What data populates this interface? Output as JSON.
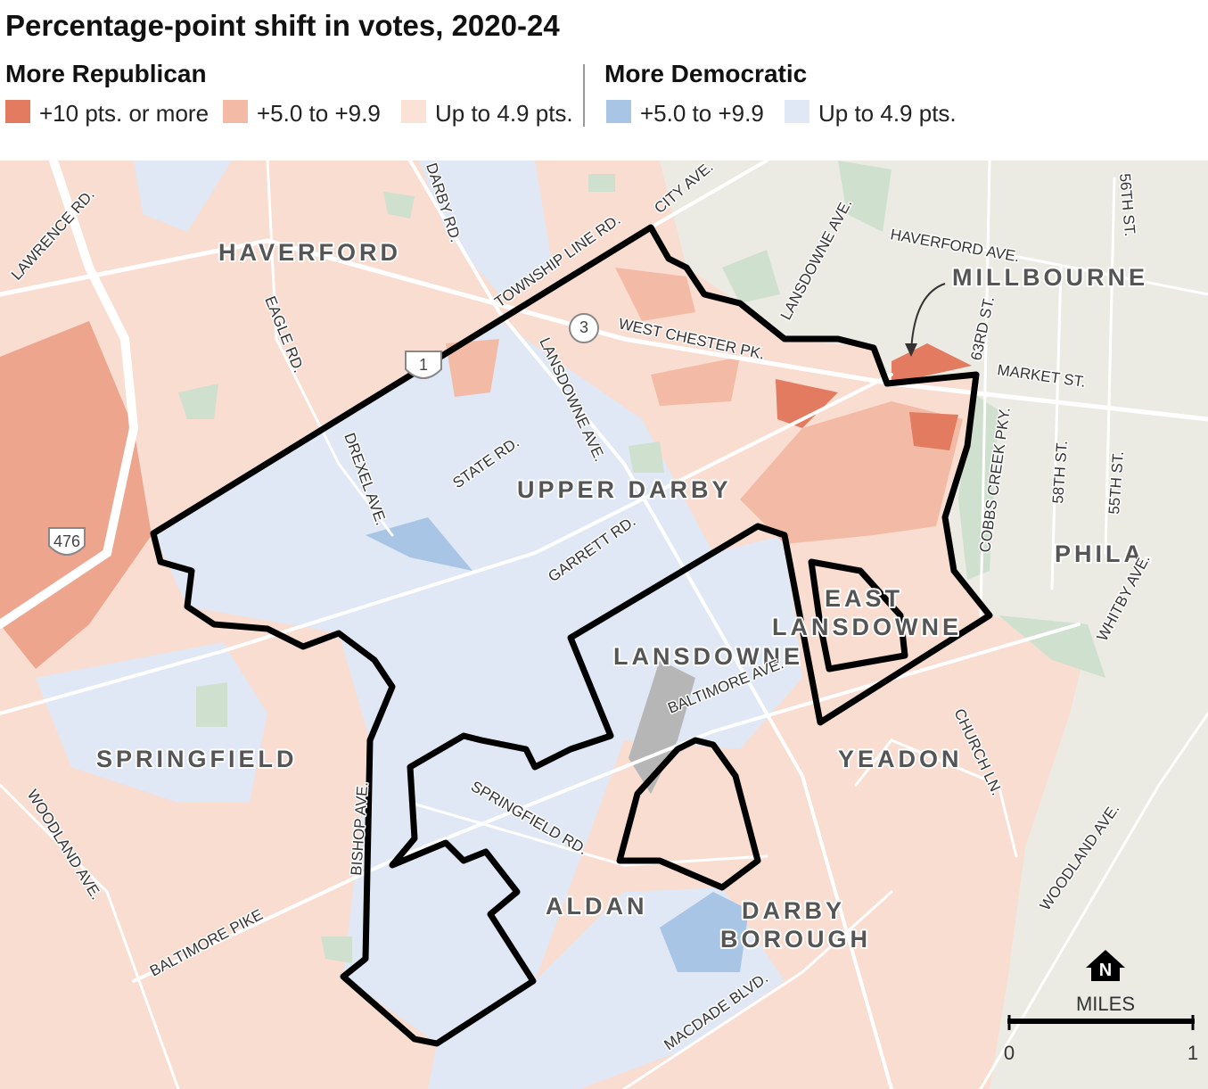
{
  "title": "Percentage-point shift in votes, 2020-24",
  "legend": {
    "republican": {
      "heading": "More Republican",
      "items": [
        {
          "label": "+10 pts. or more",
          "color": "#e27b60"
        },
        {
          "label": "+5.0 to +9.9",
          "color": "#f3bba6"
        },
        {
          "label": "Up to 4.9 pts.",
          "color": "#fbe2d7"
        }
      ]
    },
    "democratic": {
      "heading": "More Democratic",
      "items": [
        {
          "label": "+5.0 to +9.9",
          "color": "#a9c5e5"
        },
        {
          "label": "Up to 4.9 pts.",
          "color": "#dfe8f4"
        }
      ]
    }
  },
  "places": [
    "HAVERFORD",
    "MILLBOURNE",
    "UPPER DARBY",
    "PHILA.",
    "EAST",
    "LANSDOWNE",
    "LANSDOWNE",
    "SPRINGFIELD",
    "YEADON",
    "ALDAN",
    "DARBY",
    "BOROUGH"
  ],
  "roads": [
    "LAWRENCE RD.",
    "DARBY RD.",
    "CITY AVE.",
    "TOWNSHIP LINE RD.",
    "HAVERFORD AVE.",
    "LANSDOWNE AVE.",
    "56TH ST.",
    "EAGLE RD.",
    "WEST CHESTER PK.",
    "63RD ST.",
    "MARKET ST.",
    "LANSDOWNE AVE.",
    "DREXEL AVE.",
    "STATE RD.",
    "COBBS CREEK PKY.",
    "58TH ST.",
    "55TH ST.",
    "GARRETT RD.",
    "WHITBY AVE.",
    "BALTIMORE AVE.",
    "CHURCH LN.",
    "BISHOP AVE.",
    "SPRINGFIELD RD.",
    "WOODLAND AVE.",
    "WOODLAND AVE.",
    "BALTIMORE PIKE",
    "MACDADE BLVD."
  ],
  "route_shields": [
    "1",
    "3",
    "476"
  ],
  "scale": {
    "north": "N",
    "label": "MILES",
    "ticks": [
      0,
      1
    ]
  }
}
